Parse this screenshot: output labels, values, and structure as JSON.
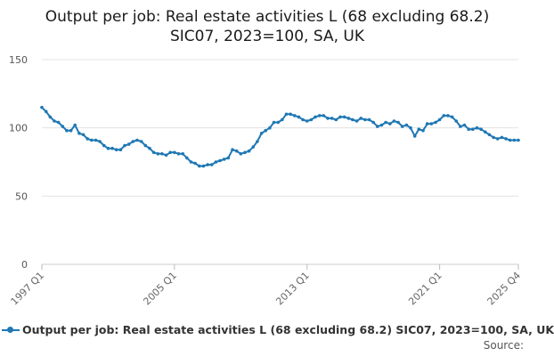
{
  "chart_data": {
    "type": "line",
    "title_line1": "Output per job: Real estate activities L (68 excluding 68.2)",
    "title_line2": "SIC07, 2023=100, SA, UK",
    "xlabel": "",
    "ylabel": "",
    "ylim": [
      0,
      150
    ],
    "yticks": [
      0,
      50,
      100,
      150
    ],
    "xticks": [
      "1997 Q1",
      "2005 Q1",
      "2013 Q1",
      "2021 Q1",
      "2025 Q4"
    ],
    "grid": true,
    "legend_position": "bottom",
    "source_label": "Source:",
    "series": [
      {
        "name": "Output per job: Real estate activities L (68 excluding 68.2) SIC07, 2023=100, SA, UK",
        "color": "#1f78b4",
        "x": [
          "1997 Q1",
          "1997 Q2",
          "1997 Q3",
          "1997 Q4",
          "1998 Q1",
          "1998 Q2",
          "1998 Q3",
          "1998 Q4",
          "1999 Q1",
          "1999 Q2",
          "1999 Q3",
          "1999 Q4",
          "2000 Q1",
          "2000 Q2",
          "2000 Q3",
          "2000 Q4",
          "2001 Q1",
          "2001 Q2",
          "2001 Q3",
          "2001 Q4",
          "2002 Q1",
          "2002 Q2",
          "2002 Q3",
          "2002 Q4",
          "2003 Q1",
          "2003 Q2",
          "2003 Q3",
          "2003 Q4",
          "2004 Q1",
          "2004 Q2",
          "2004 Q3",
          "2004 Q4",
          "2005 Q1",
          "2005 Q2",
          "2005 Q3",
          "2005 Q4",
          "2006 Q1",
          "2006 Q2",
          "2006 Q3",
          "2006 Q4",
          "2007 Q1",
          "2007 Q2",
          "2007 Q3",
          "2007 Q4",
          "2008 Q1",
          "2008 Q2",
          "2008 Q3",
          "2008 Q4",
          "2009 Q1",
          "2009 Q2",
          "2009 Q3",
          "2009 Q4",
          "2010 Q1",
          "2010 Q2",
          "2010 Q3",
          "2010 Q4",
          "2011 Q1",
          "2011 Q2",
          "2011 Q3",
          "2011 Q4",
          "2012 Q1",
          "2012 Q2",
          "2012 Q3",
          "2012 Q4",
          "2013 Q1",
          "2013 Q2",
          "2013 Q3",
          "2013 Q4",
          "2014 Q1",
          "2014 Q2",
          "2014 Q3",
          "2014 Q4",
          "2015 Q1",
          "2015 Q2",
          "2015 Q3",
          "2015 Q4",
          "2016 Q1",
          "2016 Q2",
          "2016 Q3",
          "2016 Q4",
          "2017 Q1",
          "2017 Q2",
          "2017 Q3",
          "2017 Q4",
          "2018 Q1",
          "2018 Q2",
          "2018 Q3",
          "2018 Q4",
          "2019 Q1",
          "2019 Q2",
          "2019 Q3",
          "2019 Q4",
          "2020 Q1",
          "2020 Q2",
          "2020 Q3",
          "2020 Q4",
          "2021 Q1",
          "2021 Q2",
          "2021 Q3",
          "2021 Q4",
          "2022 Q1",
          "2022 Q2",
          "2022 Q3",
          "2022 Q4",
          "2023 Q1",
          "2023 Q2",
          "2023 Q3",
          "2023 Q4",
          "2024 Q1",
          "2024 Q2",
          "2024 Q3",
          "2024 Q4",
          "2025 Q1",
          "2025 Q2",
          "2025 Q3",
          "2025 Q4"
        ],
        "values": [
          115,
          112,
          108,
          105,
          104,
          101,
          98,
          98,
          102,
          96,
          95,
          92,
          91,
          91,
          90,
          87,
          85,
          85,
          84,
          84,
          87,
          88,
          90,
          91,
          90,
          87,
          85,
          82,
          81,
          81,
          80,
          82,
          82,
          81,
          81,
          78,
          75,
          74,
          72,
          72,
          73,
          73,
          75,
          76,
          77,
          78,
          84,
          83,
          81,
          82,
          83,
          86,
          90,
          96,
          98,
          100,
          104,
          104,
          106,
          110,
          110,
          109,
          108,
          106,
          105,
          106,
          108,
          109,
          109,
          107,
          107,
          106,
          108,
          108,
          107,
          106,
          105,
          107,
          106,
          106,
          104,
          101,
          102,
          104,
          103,
          105,
          104,
          101,
          102,
          100,
          94,
          99,
          98,
          103,
          103,
          104,
          106,
          109,
          109,
          108,
          105,
          101,
          102,
          99,
          99,
          100,
          99,
          97,
          95,
          93,
          92,
          93,
          92,
          91,
          91,
          91
        ]
      }
    ]
  }
}
